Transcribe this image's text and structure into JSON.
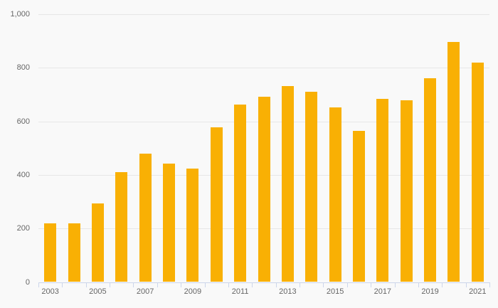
{
  "chart_data": {
    "type": "bar",
    "title": "",
    "xlabel": "",
    "ylabel": "",
    "categories": [
      "2003",
      "2004",
      "2005",
      "2006",
      "2007",
      "2008",
      "2009",
      "2010",
      "2011",
      "2012",
      "2013",
      "2014",
      "2015",
      "2016",
      "2017",
      "2018",
      "2019",
      "2020",
      "2021"
    ],
    "values": [
      220,
      220,
      293,
      410,
      480,
      441,
      423,
      578,
      662,
      692,
      732,
      710,
      651,
      564,
      684,
      679,
      760,
      896,
      820
    ],
    "ylim": [
      0,
      1000
    ],
    "ytick_interval": 200,
    "yticks": [
      0,
      200,
      400,
      600,
      800,
      1000
    ],
    "ytick_labels": [
      "0",
      "200",
      "400",
      "600",
      "800",
      "1,000"
    ],
    "xtick_labels_shown": [
      "2003",
      "2005",
      "2007",
      "2009",
      "2011",
      "2013",
      "2015",
      "2017",
      "2019",
      "2021"
    ],
    "grid": true,
    "legend": false,
    "colors": {
      "bar": "#f9b004",
      "background": "#f9f9f9",
      "gridline": "#e7e7e7",
      "axis_line": "#ccd6eb",
      "tick": "#ccd6eb",
      "label_text": "#666666"
    }
  }
}
